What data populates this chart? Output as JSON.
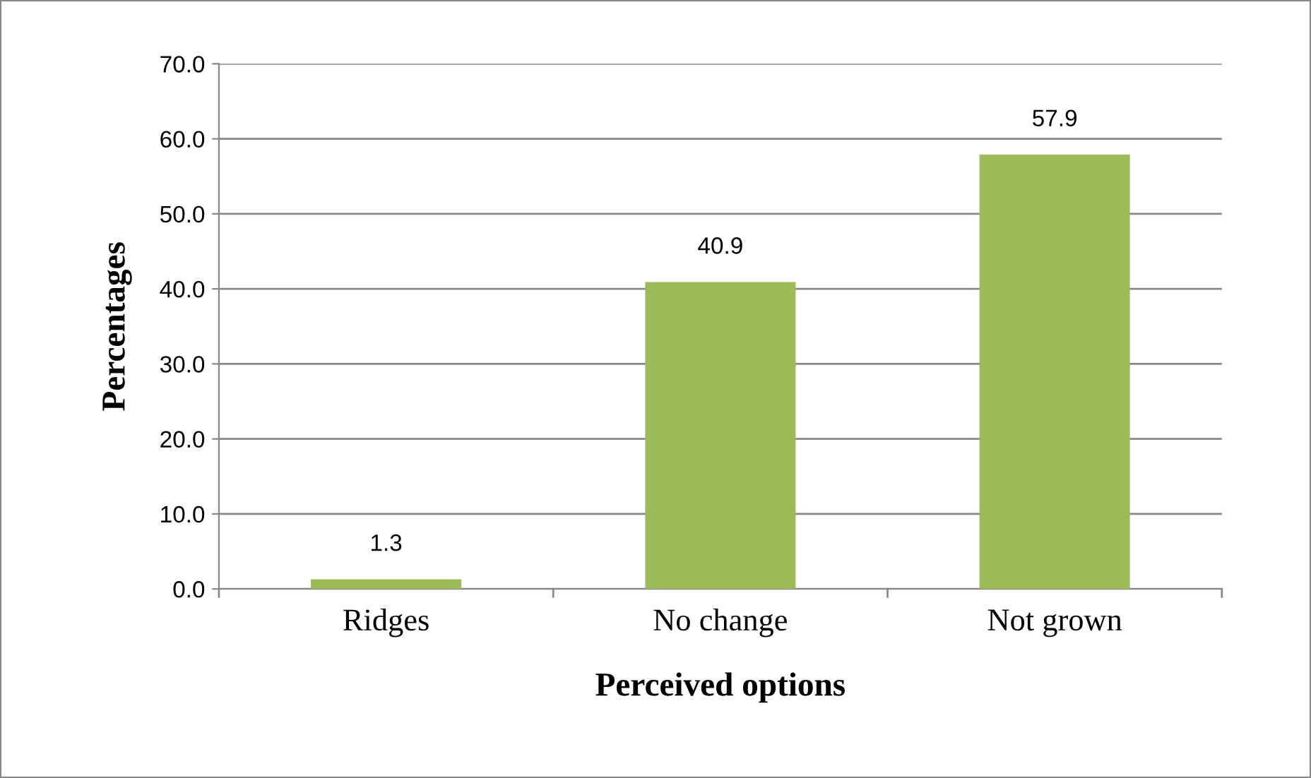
{
  "chart_data": {
    "type": "bar",
    "xlabel": "Perceived options",
    "ylabel": "Percentages",
    "categories": [
      "Ridges",
      "No change",
      "Not grown"
    ],
    "values": [
      1.3,
      40.9,
      57.9
    ],
    "color": "#9bbb59",
    "ylim": [
      0,
      70
    ],
    "yticks": [
      {
        "value": 0,
        "label": "0.0"
      },
      {
        "value": 10,
        "label": "10.0"
      },
      {
        "value": 20,
        "label": "20.0"
      },
      {
        "value": 30,
        "label": "30.0"
      },
      {
        "value": 40,
        "label": "40.0"
      },
      {
        "value": 50,
        "label": "50.0"
      },
      {
        "value": 60,
        "label": "60.0"
      },
      {
        "value": 70,
        "label": "70.0"
      }
    ],
    "grid": "y",
    "data_labels": true,
    "legend": false
  }
}
